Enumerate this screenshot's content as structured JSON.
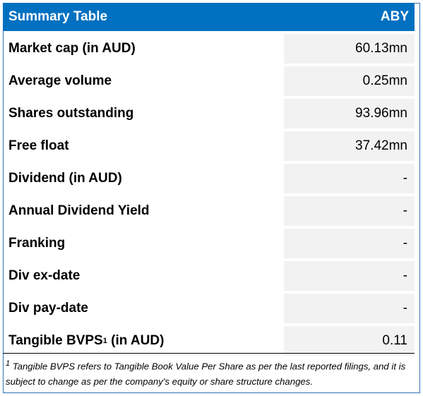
{
  "header": {
    "title": "Summary Table",
    "ticker": "ABY"
  },
  "rows": [
    {
      "label": "Market cap (in AUD)",
      "value": "60.13mn"
    },
    {
      "label": "Average volume",
      "value": "0.25mn"
    },
    {
      "label": "Shares outstanding",
      "value": "93.96mn"
    },
    {
      "label": "Free float",
      "value": "37.42mn"
    },
    {
      "label": "Dividend (in AUD)",
      "value": "-"
    },
    {
      "label": "Annual Dividend Yield",
      "value": "-"
    },
    {
      "label": "Franking",
      "value": "-"
    },
    {
      "label": "Div ex-date",
      "value": "-"
    },
    {
      "label": "Div pay-date",
      "value": "-"
    },
    {
      "label": "Tangible BVPS",
      "label_sup": "1",
      "label_suffix": " (in AUD)",
      "value": "0.11"
    }
  ],
  "footnote": {
    "marker": "1",
    "text": " Tangible BVPS refers to Tangible Book Value Per Share as per the last reported filings, and it is subject to change as per the company's equity or share structure changes."
  },
  "colors": {
    "header_bg": "#0070c0",
    "value_bg": "#f2f2f2",
    "border": "#2e75b6"
  }
}
